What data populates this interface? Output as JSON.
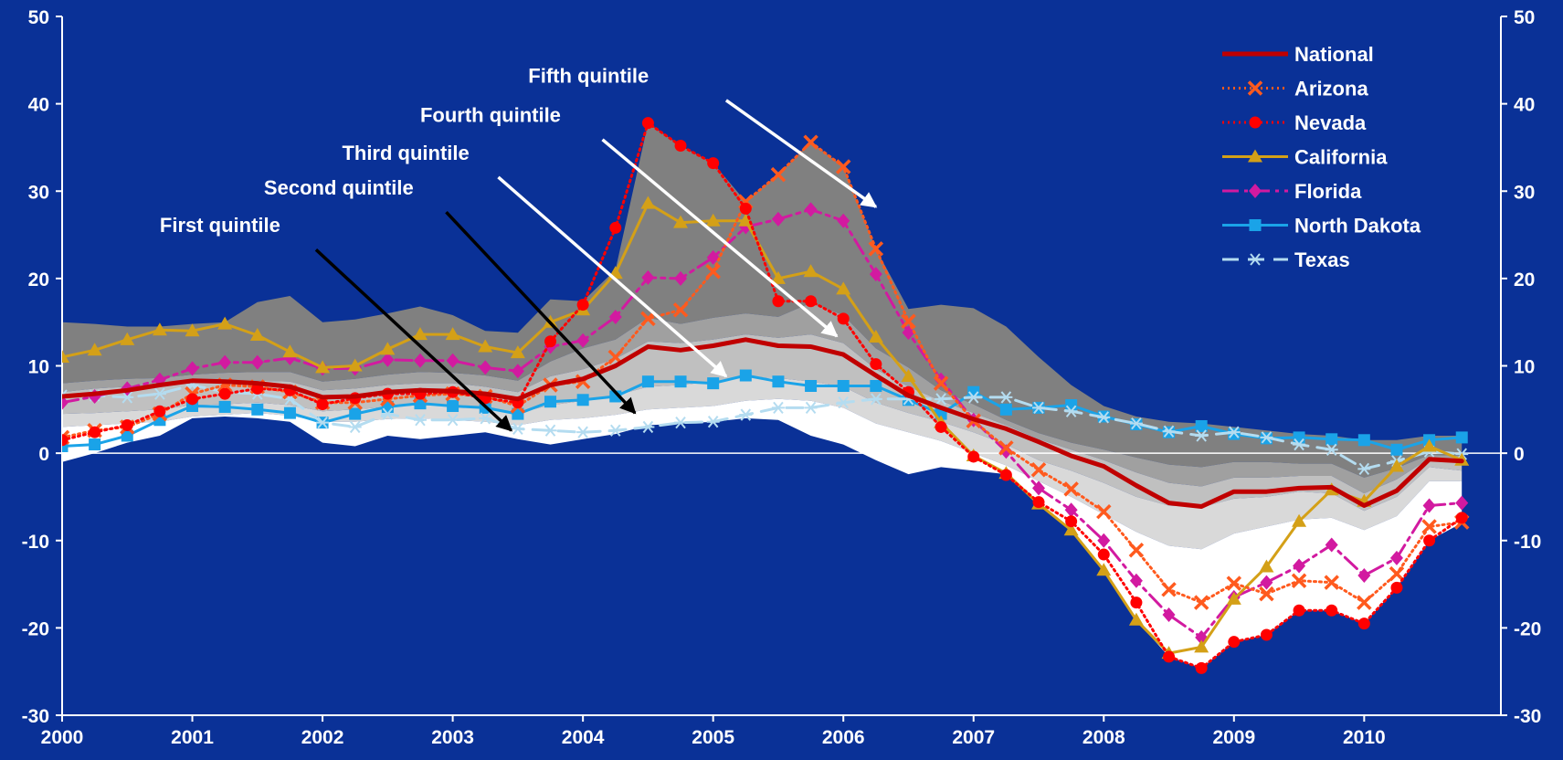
{
  "chart_data": {
    "type": "line",
    "title": "",
    "xlabel": "",
    "ylabel": "",
    "ylim": [
      -30,
      50
    ],
    "yticks": [
      -30,
      -20,
      -10,
      0,
      10,
      20,
      30,
      40,
      50
    ],
    "xlim": [
      2000.0,
      2011.05
    ],
    "xticks": [
      "2000",
      "2001",
      "2002",
      "2003",
      "2004",
      "2005",
      "2006",
      "2007",
      "2008",
      "2009",
      "2010"
    ],
    "x": [
      2000.0,
      2000.25,
      2000.5,
      2000.75,
      2001.0,
      2001.25,
      2001.5,
      2001.75,
      2002.0,
      2002.25,
      2002.5,
      2002.75,
      2003.0,
      2003.25,
      2003.5,
      2003.75,
      2004.0,
      2004.25,
      2004.5,
      2004.75,
      2005.0,
      2005.25,
      2005.5,
      2005.75,
      2006.0,
      2006.25,
      2006.5,
      2006.75,
      2007.0,
      2007.25,
      2007.5,
      2007.75,
      2008.0,
      2008.25,
      2008.5,
      2008.75,
      2009.0,
      2009.25,
      2009.5,
      2009.75,
      2010.0,
      2010.25,
      2010.5,
      2010.75
    ],
    "background_color": "#0a3197",
    "legend_position": "top-right",
    "series": [
      {
        "name": "National",
        "color": "#c00000",
        "dash": "",
        "marker": "none",
        "width": 5,
        "values": [
          6.5,
          6.8,
          7.2,
          7.8,
          8.3,
          8.2,
          8.0,
          7.6,
          6.4,
          6.5,
          7.0,
          7.2,
          7.1,
          6.8,
          6.2,
          7.8,
          8.5,
          10.0,
          12.2,
          11.8,
          12.3,
          13.0,
          12.3,
          12.2,
          11.3,
          8.9,
          6.6,
          5.2,
          3.9,
          2.8,
          1.3,
          -0.3,
          -1.5,
          -3.7,
          -5.7,
          -6.1,
          -4.4,
          -4.4,
          -4.0,
          -3.9,
          -6.0,
          -4.3,
          -0.7,
          -0.9
        ]
      },
      {
        "name": "Arizona",
        "color": "#ff5a1e",
        "dash": "2,4",
        "marker": "x",
        "width": 3,
        "values": [
          1.8,
          2.6,
          3.0,
          4.5,
          6.8,
          7.8,
          7.6,
          7.0,
          5.8,
          5.8,
          6.2,
          6.6,
          6.8,
          6.5,
          5.4,
          7.8,
          8.2,
          11.0,
          15.4,
          16.4,
          20.8,
          28.8,
          31.9,
          35.6,
          32.8,
          23.4,
          15.1,
          8.0,
          3.7,
          0.6,
          -1.9,
          -4.1,
          -6.7,
          -11.1,
          -15.6,
          -17.1,
          -14.9,
          -16.1,
          -14.6,
          -14.8,
          -17.1,
          -13.8,
          -8.4,
          -7.9
        ]
      },
      {
        "name": "Nevada",
        "color": "#ff0000",
        "dash": "2,4",
        "marker": "circle",
        "width": 3,
        "values": [
          1.5,
          2.4,
          3.2,
          4.8,
          6.2,
          6.8,
          7.4,
          7.2,
          5.6,
          6.3,
          6.8,
          6.8,
          7.0,
          6.3,
          5.8,
          12.8,
          17.0,
          25.8,
          37.8,
          35.2,
          33.2,
          28.0,
          17.4,
          17.4,
          15.4,
          10.2,
          7.0,
          3.0,
          -0.4,
          -2.5,
          -5.6,
          -7.8,
          -11.6,
          -17.1,
          -23.3,
          -24.6,
          -21.6,
          -20.8,
          -18.0,
          -18.0,
          -19.5,
          -15.4,
          -10.0,
          -7.4
        ]
      },
      {
        "name": "California",
        "color": "#d4a017",
        "dash": "",
        "marker": "triangle",
        "width": 3,
        "values": [
          11.0,
          11.8,
          13.0,
          14.1,
          14.0,
          14.8,
          13.5,
          11.6,
          9.8,
          10.0,
          11.9,
          13.6,
          13.6,
          12.2,
          11.5,
          15.0,
          16.4,
          20.6,
          28.6,
          26.4,
          26.6,
          26.6,
          20.0,
          20.8,
          18.8,
          13.3,
          8.8,
          3.5,
          -0.3,
          -2.3,
          -5.8,
          -8.8,
          -13.4,
          -19.1,
          -22.9,
          -22.2,
          -16.7,
          -13.0,
          -7.8,
          -4.2,
          -5.5,
          -1.5,
          0.8,
          -0.8
        ]
      },
      {
        "name": "Florida",
        "color": "#d21aa0",
        "dash": "18,6,4,6",
        "marker": "diamond",
        "width": 3,
        "values": [
          5.8,
          6.5,
          7.4,
          8.4,
          9.7,
          10.4,
          10.4,
          10.9,
          9.7,
          9.7,
          10.7,
          10.6,
          10.6,
          9.8,
          9.4,
          12.2,
          12.9,
          15.6,
          20.1,
          20.0,
          22.4,
          25.9,
          26.8,
          27.9,
          26.6,
          20.5,
          13.8,
          8.4,
          3.8,
          0.2,
          -4.0,
          -6.5,
          -10.0,
          -14.6,
          -18.5,
          -21.1,
          -16.5,
          -14.8,
          -12.9,
          -10.5,
          -14.0,
          -12.0,
          -6.0,
          -5.7
        ]
      },
      {
        "name": "North Dakota",
        "color": "#1aa3e8",
        "dash": "",
        "marker": "square",
        "width": 3,
        "values": [
          0.8,
          1.0,
          2.0,
          3.8,
          5.4,
          5.3,
          5.0,
          4.6,
          3.5,
          4.5,
          5.3,
          5.7,
          5.4,
          5.2,
          4.5,
          5.9,
          6.1,
          6.5,
          8.2,
          8.2,
          8.0,
          8.9,
          8.2,
          7.7,
          7.7,
          7.7,
          6.1,
          4.5,
          7.0,
          5.0,
          5.2,
          5.5,
          4.2,
          3.3,
          2.4,
          3.1,
          2.2,
          1.7,
          1.8,
          1.6,
          1.5,
          0.4,
          1.5,
          1.8
        ]
      },
      {
        "name": "Texas",
        "color": "#b4dcf0",
        "dash": "18,10",
        "marker": "asterisk",
        "width": 3,
        "values": [
          6.6,
          6.6,
          6.4,
          6.8,
          7.8,
          7.0,
          6.8,
          6.2,
          3.5,
          3.0,
          4.5,
          3.8,
          3.8,
          4.0,
          2.8,
          2.6,
          2.4,
          2.6,
          3.0,
          3.5,
          3.6,
          4.4,
          5.2,
          5.2,
          5.8,
          6.2,
          6.2,
          6.2,
          6.4,
          6.4,
          5.2,
          4.8,
          4.1,
          3.4,
          2.5,
          2.0,
          2.4,
          1.8,
          1.0,
          0.4,
          -1.8,
          -0.9,
          0.2,
          -0.1
        ]
      }
    ],
    "bands": [
      {
        "name": "Fifth quintile",
        "fill": "#808080",
        "upper": [
          15.0,
          14.8,
          14.5,
          14.5,
          14.8,
          15.0,
          17.3,
          18.0,
          15.0,
          15.3,
          16.0,
          16.8,
          15.8,
          14.0,
          13.8,
          17.6,
          17.4,
          21.0,
          37.8,
          35.2,
          33.2,
          28.8,
          31.9,
          35.6,
          32.8,
          23.4,
          16.5,
          17.0,
          16.6,
          14.5,
          11.0,
          7.8,
          5.4,
          4.2,
          3.6,
          3.4,
          3.0,
          2.6,
          2.2,
          2.0,
          1.5,
          1.5,
          2.0,
          2.0
        ],
        "lower": [
          8.0,
          8.3,
          8.5,
          8.6,
          9.0,
          9.2,
          9.3,
          9.3,
          8.2,
          8.5,
          9.0,
          9.3,
          9.2,
          8.9,
          8.3,
          10.5,
          12.0,
          13.0,
          15.5,
          14.8,
          15.5,
          16.0,
          15.6,
          17.2,
          15.8,
          12.0,
          9.8,
          7.2,
          5.6,
          3.8,
          2.3,
          1.2,
          0.4,
          -0.5,
          -1.3,
          -1.6,
          -1.0,
          -1.0,
          -1.2,
          -1.2,
          -2.8,
          -1.7,
          -0.2,
          -0.3
        ]
      },
      {
        "name": "Fourth quintile",
        "fill": "#a0a0a0",
        "lower": [
          7.0,
          7.4,
          7.6,
          7.8,
          8.0,
          8.2,
          8.3,
          8.2,
          7.2,
          7.4,
          7.8,
          8.0,
          8.0,
          7.6,
          7.0,
          8.8,
          9.6,
          10.8,
          12.8,
          12.6,
          13.0,
          13.6,
          13.2,
          13.6,
          12.6,
          9.6,
          7.6,
          6.0,
          4.6,
          3.2,
          1.6,
          0.4,
          -0.8,
          -2.2,
          -3.4,
          -3.8,
          -2.8,
          -2.8,
          -2.6,
          -2.6,
          -4.6,
          -3.0,
          -0.6,
          -0.8
        ]
      },
      {
        "name": "Third quintile",
        "fill": "#c0c0c0",
        "lower": [
          4.5,
          4.6,
          4.8,
          5.0,
          5.5,
          5.6,
          5.8,
          5.5,
          4.8,
          5.0,
          5.3,
          5.5,
          5.4,
          5.1,
          4.6,
          5.5,
          6.0,
          6.6,
          7.6,
          7.8,
          8.2,
          8.8,
          8.6,
          8.2,
          7.6,
          5.8,
          4.6,
          3.6,
          2.4,
          1.0,
          -0.8,
          -2.0,
          -3.4,
          -5.0,
          -6.0,
          -6.2,
          -5.2,
          -5.0,
          -4.4,
          -4.6,
          -6.6,
          -5.0,
          -1.6,
          -2.0
        ]
      },
      {
        "name": "Second quintile",
        "fill": "#d9d9d9",
        "lower": [
          3.0,
          3.2,
          3.4,
          3.6,
          4.2,
          4.4,
          4.6,
          4.3,
          3.6,
          3.6,
          3.9,
          4.0,
          3.8,
          3.6,
          3.2,
          3.8,
          4.0,
          4.4,
          5.0,
          5.2,
          5.4,
          6.0,
          6.2,
          6.0,
          5.2,
          3.4,
          2.4,
          1.4,
          0.0,
          -1.4,
          -3.2,
          -5.0,
          -7.0,
          -9.0,
          -10.6,
          -11.0,
          -9.2,
          -8.4,
          -7.6,
          -7.4,
          -8.8,
          -7.2,
          -3.2,
          -3.2
        ]
      },
      {
        "name": "First quintile",
        "fill": "#ffffff",
        "lower": [
          -1.0,
          0.0,
          1.2,
          2.0,
          4.0,
          4.2,
          4.0,
          3.6,
          1.2,
          0.8,
          2.0,
          1.6,
          2.0,
          2.4,
          1.6,
          1.0,
          1.6,
          2.2,
          3.2,
          3.4,
          3.6,
          4.0,
          3.8,
          2.0,
          1.0,
          -0.8,
          -2.4,
          -1.6,
          -2.0,
          -2.4,
          -5.6,
          -8.8,
          -13.4,
          -19.1,
          -23.3,
          -24.6,
          -21.6,
          -20.8,
          -18.0,
          -18.0,
          -19.5,
          -15.4,
          -10.0,
          -8.0
        ]
      }
    ],
    "annotations": [
      {
        "label": "Fifth quintile",
        "arrow_color": "#ffffff",
        "text_x": 2003.58,
        "text_y": 42.4,
        "tail_x": 2005.1,
        "tail_y": 40.4,
        "head_x": 2006.25,
        "head_y": 28.2
      },
      {
        "label": "Fourth quintile",
        "arrow_color": "#ffffff",
        "text_x": 2002.75,
        "text_y": 37.9,
        "tail_x": 2004.15,
        "tail_y": 35.9,
        "head_x": 2005.95,
        "head_y": 13.4
      },
      {
        "label": "Third quintile",
        "arrow_color": "#ffffff",
        "text_x": 2002.15,
        "text_y": 33.6,
        "tail_x": 2003.35,
        "tail_y": 31.6,
        "head_x": 2005.1,
        "head_y": 8.8
      },
      {
        "label": "Second quintile",
        "arrow_color": "#000000",
        "text_x": 2001.55,
        "text_y": 29.6,
        "tail_x": 2002.95,
        "tail_y": 27.6,
        "head_x": 2004.4,
        "head_y": 4.6
      },
      {
        "label": "First quintile",
        "arrow_color": "#000000",
        "text_x": 2000.75,
        "text_y": 25.3,
        "tail_x": 2001.95,
        "tail_y": 23.3,
        "head_x": 2003.45,
        "head_y": 2.6
      }
    ]
  }
}
